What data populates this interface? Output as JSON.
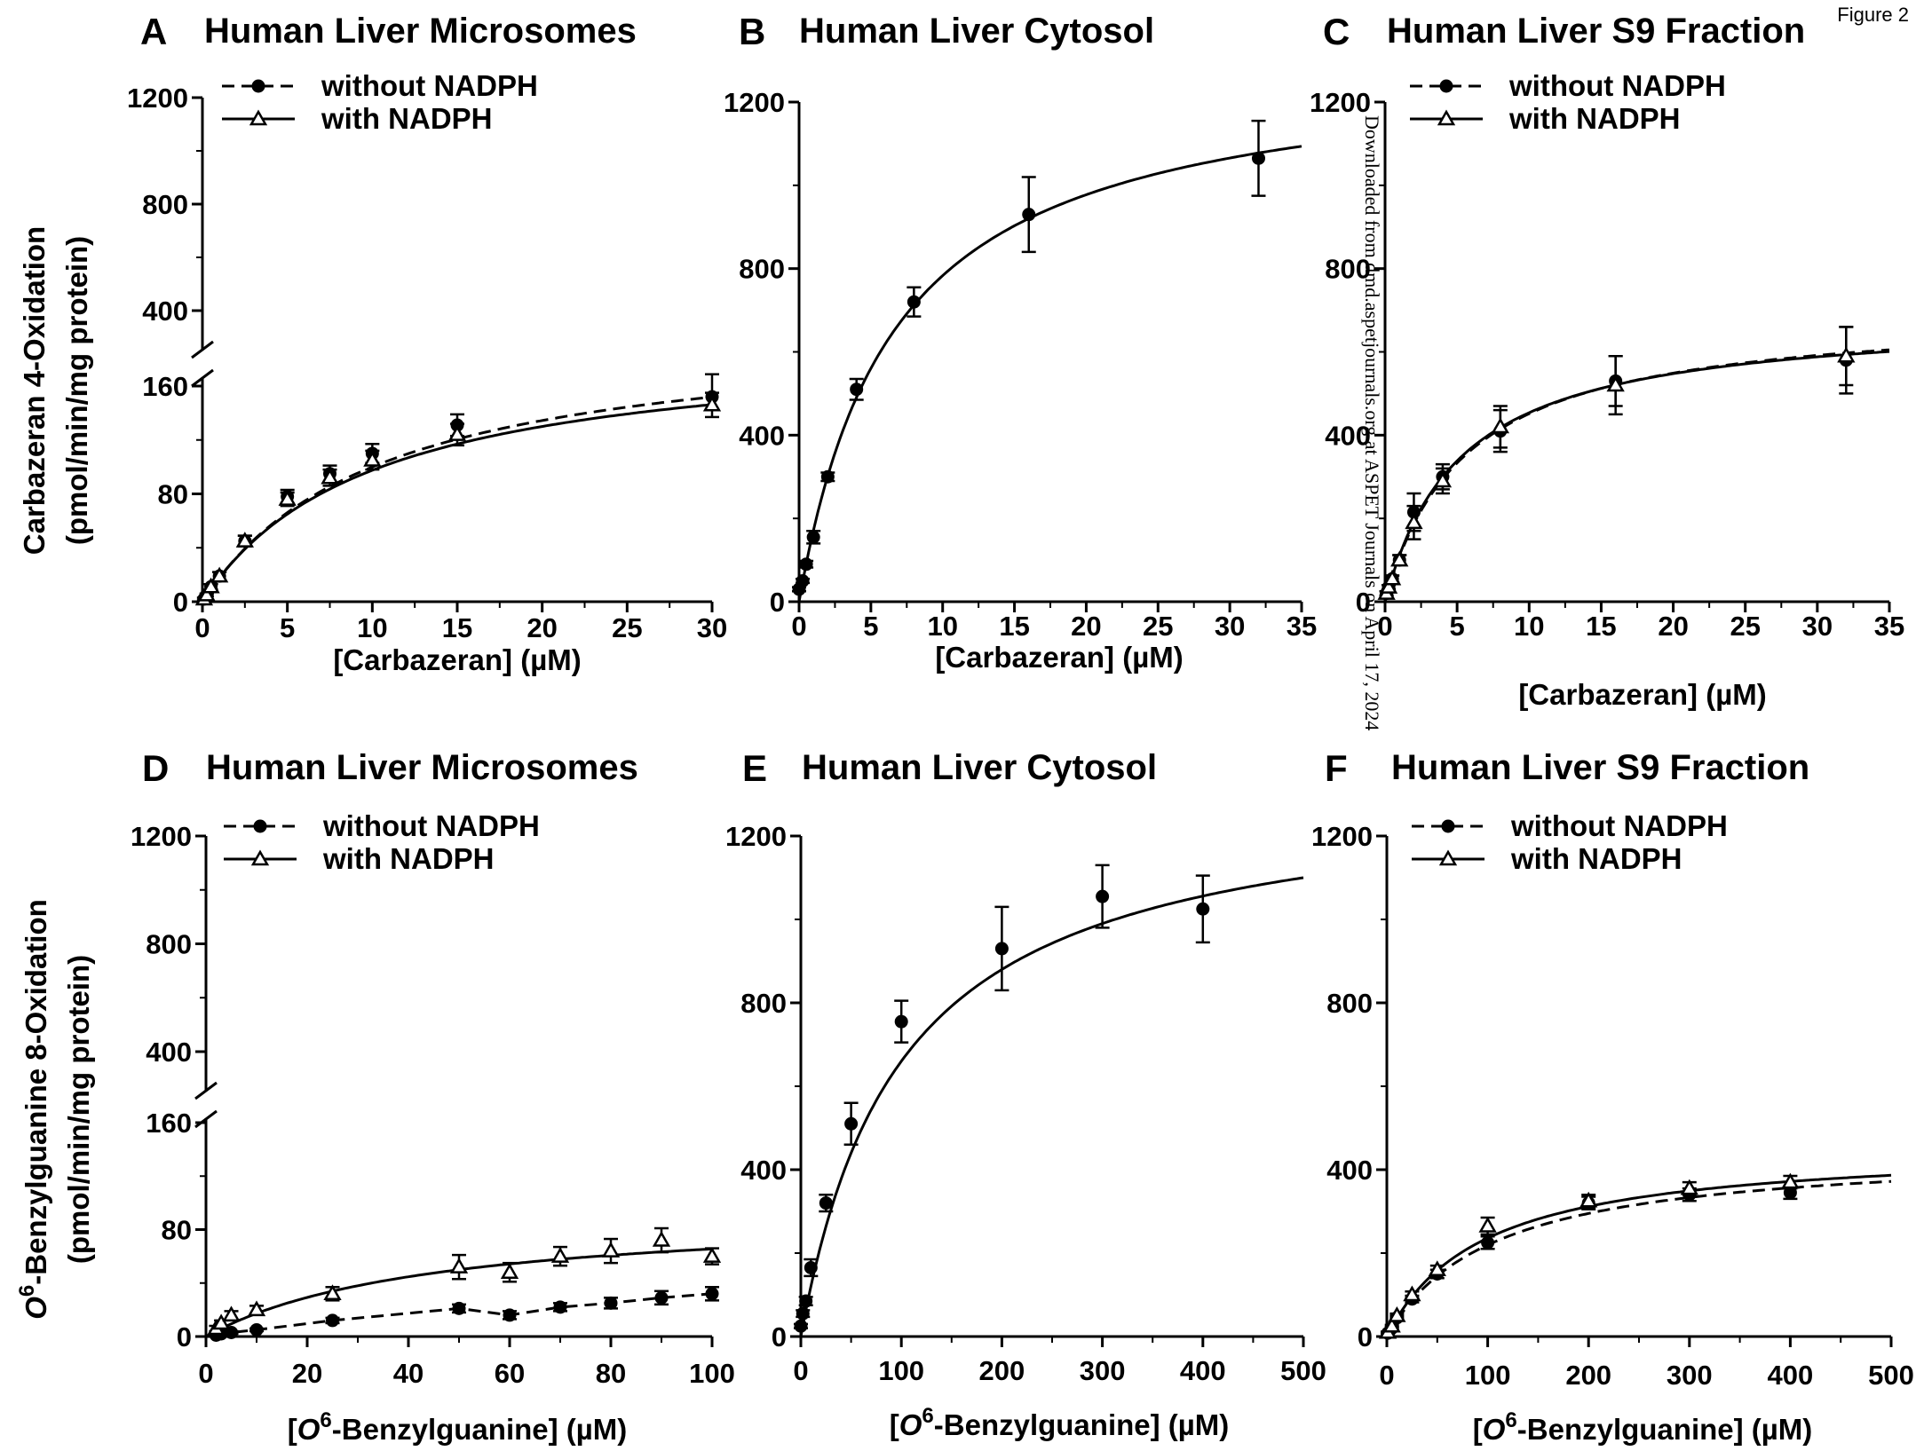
{
  "figure_label": "Figure 2",
  "watermark": "Downloaded from dmd.aspetjournals.org at ASPET Journals on April 17, 2024",
  "chart_data": [
    {
      "panel": "A",
      "type": "line",
      "title": "Human Liver Microsomes",
      "xlabel": "[Carbazeran] (µM)",
      "ylabel_line1": "Carbazeran 4-Oxidation",
      "ylabel_line2": "(pmol/min/mg protein)",
      "xlim": [
        0,
        30
      ],
      "ylim_lower": [
        0,
        160
      ],
      "ylim_upper": [
        400,
        1200
      ],
      "broken_axis": true,
      "xticks": [
        "0",
        "5",
        "10",
        "15",
        "20",
        "25",
        "30"
      ],
      "yticks": [
        "0",
        "80",
        "160",
        "400",
        "800",
        "1200"
      ],
      "legend": [
        "without NADPH",
        "with NADPH"
      ],
      "series": [
        {
          "name": "without NADPH",
          "marker": "circle",
          "line": "dashed",
          "x": [
            0.1,
            0.25,
            0.5,
            1,
            2.5,
            5,
            7.5,
            10,
            15,
            30
          ],
          "y": [
            2,
            5,
            11,
            19,
            45,
            78,
            95,
            110,
            131,
            152
          ],
          "err": [
            1,
            1,
            2,
            3,
            4,
            5,
            6,
            7,
            8,
            9
          ],
          "fit": {
            "vmax": 205,
            "km": 10.5
          }
        },
        {
          "name": "with NADPH",
          "marker": "triangle",
          "line": "solid",
          "x": [
            0.1,
            0.25,
            0.5,
            1,
            2.5,
            5,
            7.5,
            10,
            15,
            30
          ],
          "y": [
            2,
            5,
            11,
            19,
            45,
            76,
            92,
            105,
            124,
            146
          ],
          "err": [
            1,
            1,
            2,
            3,
            4,
            5,
            6,
            7,
            8,
            9
          ],
          "fit": {
            "vmax": 195,
            "km": 10
          }
        }
      ]
    },
    {
      "panel": "B",
      "type": "line",
      "title": "Human Liver Cytosol",
      "xlabel": "[Carbazeran] (µM)",
      "xlim": [
        0,
        35
      ],
      "ylim": [
        0,
        1200
      ],
      "xticks": [
        "0",
        "5",
        "10",
        "15",
        "20",
        "25",
        "30",
        "35"
      ],
      "yticks": [
        "0",
        "400",
        "800",
        "1200"
      ],
      "series": [
        {
          "marker": "circle",
          "line": "solid",
          "x": [
            0,
            0.25,
            0.5,
            1,
            2,
            4,
            8,
            16,
            32
          ],
          "y": [
            30,
            50,
            90,
            155,
            300,
            510,
            720,
            930,
            1065
          ],
          "err": [
            5,
            5,
            8,
            15,
            10,
            25,
            35,
            90,
            90
          ],
          "fit": {
            "vmax": 1300,
            "km": 6.6
          }
        }
      ]
    },
    {
      "panel": "C",
      "type": "line",
      "title": "Human Liver S9 Fraction",
      "xlabel": "[Carbazeran] (µM)",
      "xlim": [
        0,
        35
      ],
      "ylim": [
        0,
        1200
      ],
      "xticks": [
        "0",
        "5",
        "10",
        "15",
        "20",
        "25",
        "30",
        "35"
      ],
      "yticks": [
        "0",
        "400",
        "800",
        "1200"
      ],
      "legend": [
        "without NADPH",
        "with NADPH"
      ],
      "series": [
        {
          "name": "without NADPH",
          "marker": "circle",
          "line": "dashed",
          "x": [
            0.1,
            0.25,
            0.5,
            1,
            2,
            4,
            8,
            16,
            32
          ],
          "y": [
            20,
            35,
            55,
            100,
            215,
            300,
            410,
            530,
            580
          ],
          "err": [
            5,
            5,
            8,
            12,
            45,
            30,
            50,
            60,
            80
          ],
          "fit": {
            "vmax": 700,
            "km": 5.5
          }
        },
        {
          "name": "with NADPH",
          "marker": "triangle",
          "line": "solid",
          "x": [
            0.1,
            0.25,
            0.5,
            1,
            2,
            4,
            8,
            16,
            32
          ],
          "y": [
            20,
            35,
            55,
            100,
            190,
            290,
            420,
            520,
            590
          ],
          "err": [
            5,
            5,
            8,
            12,
            40,
            30,
            50,
            70,
            70
          ],
          "fit": {
            "vmax": 690,
            "km": 5.2
          }
        }
      ]
    },
    {
      "panel": "D",
      "type": "line",
      "title": "Human Liver Microsomes",
      "xlabel_prefix": "[",
      "xlabel_italic": "O",
      "xlabel_sup": "6",
      "xlabel_rest": "-Benzylguanine] (µM)",
      "ylabel_italic": "O",
      "ylabel_sup": "6",
      "ylabel_rest": "-Benzylguanine 8-Oxidation",
      "ylabel_line2": "(pmol/min/mg protein)",
      "xlim": [
        0,
        100
      ],
      "ylim_lower": [
        0,
        160
      ],
      "ylim_upper": [
        400,
        1200
      ],
      "broken_axis": true,
      "xticks": [
        "0",
        "20",
        "40",
        "60",
        "80",
        "100"
      ],
      "yticks": [
        "0",
        "80",
        "160",
        "400",
        "800",
        "1200"
      ],
      "legend": [
        "without NADPH",
        "with NADPH"
      ],
      "series": [
        {
          "name": "without NADPH",
          "marker": "circle",
          "line": "dashed",
          "x": [
            2,
            3,
            5,
            10,
            25,
            50,
            60,
            70,
            80,
            90,
            100
          ],
          "y": [
            1,
            2,
            3,
            5,
            12,
            21,
            16,
            22,
            25,
            29,
            32
          ],
          "err": [
            1,
            1,
            1,
            1,
            2,
            3,
            3,
            3,
            4,
            5,
            5
          ],
          "path": [
            [
              2,
              1
            ],
            [
              5,
              3
            ],
            [
              10,
              5
            ],
            [
              25,
              12
            ],
            [
              50,
              21
            ],
            [
              60,
              16
            ],
            [
              70,
              22
            ],
            [
              80,
              25
            ],
            [
              90,
              29
            ],
            [
              100,
              32
            ]
          ]
        },
        {
          "name": "with NADPH",
          "marker": "triangle",
          "line": "solid",
          "x": [
            2,
            3,
            5,
            10,
            25,
            50,
            60,
            70,
            80,
            90,
            100
          ],
          "y": [
            6,
            10,
            16,
            20,
            32,
            52,
            48,
            60,
            64,
            72,
            60
          ],
          "err": [
            2,
            2,
            3,
            3,
            5,
            9,
            7,
            7,
            9,
            9,
            6
          ],
          "fit": {
            "vmax": 95,
            "km": 45
          }
        }
      ]
    },
    {
      "panel": "E",
      "type": "line",
      "title": "Human Liver Cytosol",
      "xlabel_prefix": "[",
      "xlabel_italic": "O",
      "xlabel_sup": "6",
      "xlabel_rest": "-Benzylguanine] (µM)",
      "xlim": [
        0,
        500
      ],
      "ylim": [
        0,
        1200
      ],
      "xticks": [
        "0",
        "100",
        "200",
        "300",
        "400",
        "500"
      ],
      "yticks": [
        "0",
        "400",
        "800",
        "1200"
      ],
      "series": [
        {
          "marker": "circle",
          "line": "solid",
          "x": [
            0,
            2,
            5,
            10,
            25,
            50,
            100,
            200,
            300,
            400
          ],
          "y": [
            25,
            55,
            85,
            165,
            320,
            510,
            755,
            930,
            1055,
            1025
          ],
          "err": [
            5,
            8,
            10,
            20,
            20,
            50,
            50,
            100,
            75,
            80
          ],
          "fit": {
            "vmax": 1320,
            "km": 100
          }
        }
      ]
    },
    {
      "panel": "F",
      "type": "line",
      "title": "Human Liver S9 Fraction",
      "xlabel_prefix": "[",
      "xlabel_italic": "O",
      "xlabel_sup": "6",
      "xlabel_rest": "-Benzylguanine] (µM)",
      "xlim": [
        0,
        500
      ],
      "ylim": [
        0,
        1200
      ],
      "xticks": [
        "0",
        "100",
        "200",
        "300",
        "400",
        "500"
      ],
      "yticks": [
        "0",
        "400",
        "800",
        "1200"
      ],
      "legend": [
        "without NADPH",
        "with NADPH"
      ],
      "series": [
        {
          "name": "without NADPH",
          "marker": "circle",
          "line": "dashed",
          "x": [
            1,
            5,
            10,
            25,
            50,
            100,
            200,
            300,
            400
          ],
          "y": [
            8,
            20,
            45,
            90,
            150,
            225,
            320,
            340,
            345
          ],
          "err": [
            2,
            3,
            5,
            8,
            10,
            15,
            15,
            15,
            15
          ],
          "fit": {
            "vmax": 450,
            "km": 105
          }
        },
        {
          "name": "with NADPH",
          "marker": "triangle",
          "line": "solid",
          "x": [
            1,
            5,
            10,
            25,
            50,
            100,
            200,
            300,
            400
          ],
          "y": [
            10,
            25,
            50,
            100,
            160,
            265,
            325,
            355,
            370
          ],
          "err": [
            2,
            3,
            5,
            8,
            10,
            20,
            15,
            15,
            15
          ],
          "fit": {
            "vmax": 460,
            "km": 95
          }
        }
      ]
    }
  ]
}
